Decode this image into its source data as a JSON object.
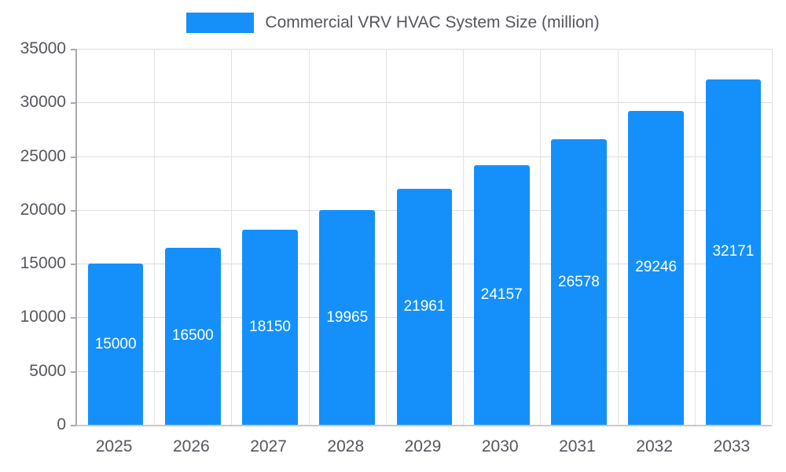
{
  "legend": {
    "label": "Commercial VRV HVAC System Size (million)",
    "swatch_color": "#1590fb"
  },
  "chart_data": {
    "type": "bar",
    "title": "Commercial VRV HVAC System Size (million)",
    "categories": [
      "2025",
      "2026",
      "2027",
      "2028",
      "2029",
      "2030",
      "2031",
      "2032",
      "2033"
    ],
    "values": [
      15000,
      16500,
      18150,
      19965,
      21961,
      24157,
      26578,
      29246,
      32171
    ],
    "xlabel": "",
    "ylabel": "",
    "ylim": [
      0,
      35000
    ],
    "yticks": [
      0,
      5000,
      10000,
      15000,
      20000,
      25000,
      30000,
      35000
    ],
    "grid": true,
    "legend_position": "top",
    "bar_color": "#1590fb",
    "value_label_color": "#ffffff",
    "value_labels_inside_bars": true
  }
}
